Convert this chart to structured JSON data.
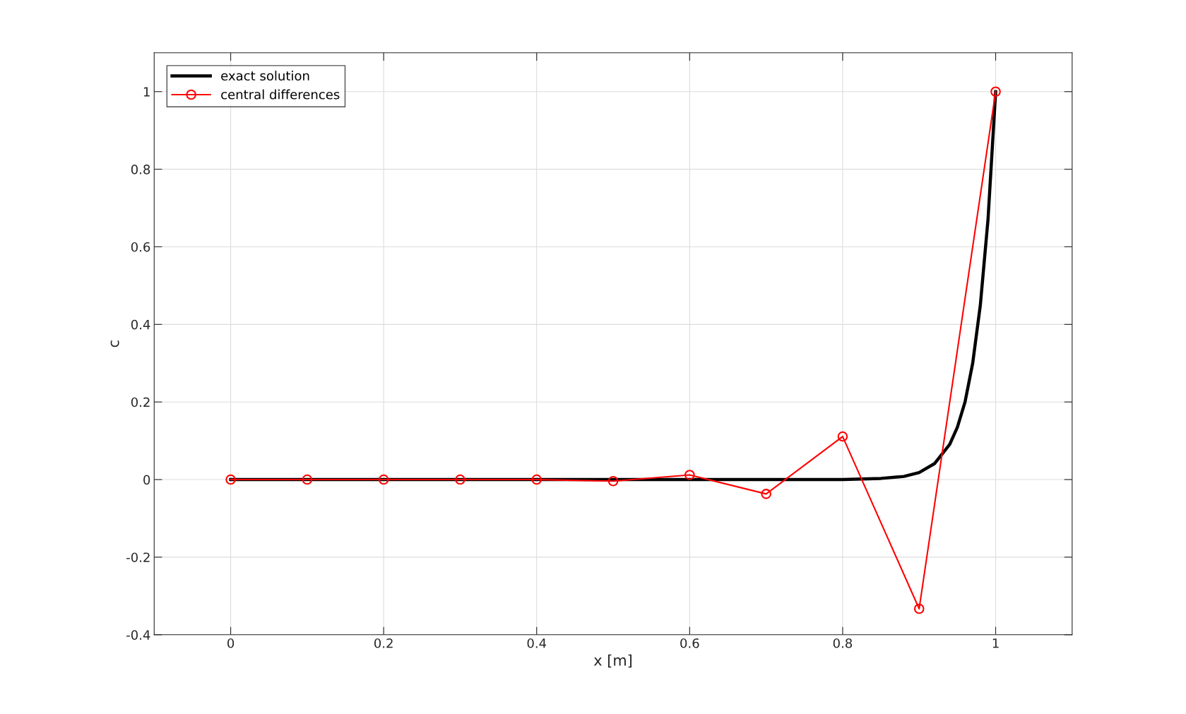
{
  "chart_data": {
    "type": "line",
    "xlabel": "x [m]",
    "ylabel": "c",
    "xlim": [
      -0.1,
      1.1
    ],
    "xticks": [
      0,
      0.2,
      0.4,
      0.6,
      0.8,
      1
    ],
    "ylim": [
      -0.4,
      1.1
    ],
    "yticks": [
      -0.4,
      -0.2,
      0,
      0.2,
      0.4,
      0.6,
      0.8,
      1
    ],
    "grid": true,
    "legend": "top left",
    "series": [
      {
        "name": "exact solution",
        "color": "#000000",
        "marker": "none",
        "x": [
          0,
          0.1,
          0.2,
          0.3,
          0.4,
          0.5,
          0.6,
          0.7,
          0.8,
          0.85,
          0.88,
          0.9,
          0.92,
          0.94,
          0.95,
          0.96,
          0.97,
          0.98,
          0.99,
          1.0
        ],
        "values": [
          0,
          0,
          0,
          0,
          0,
          0,
          0,
          0,
          0,
          0.003,
          0.008,
          0.018,
          0.041,
          0.091,
          0.135,
          0.2,
          0.3,
          0.45,
          0.67,
          1.0
        ]
      },
      {
        "name": "central differences",
        "color": "#ff0000",
        "marker": "circle",
        "x": [
          0,
          0.1,
          0.2,
          0.3,
          0.4,
          0.5,
          0.6,
          0.7,
          0.8,
          0.9,
          1.0
        ],
        "values": [
          0,
          0,
          0,
          0,
          0,
          -0.004,
          0.012,
          -0.037,
          0.111,
          -0.333,
          1.0
        ]
      }
    ]
  }
}
